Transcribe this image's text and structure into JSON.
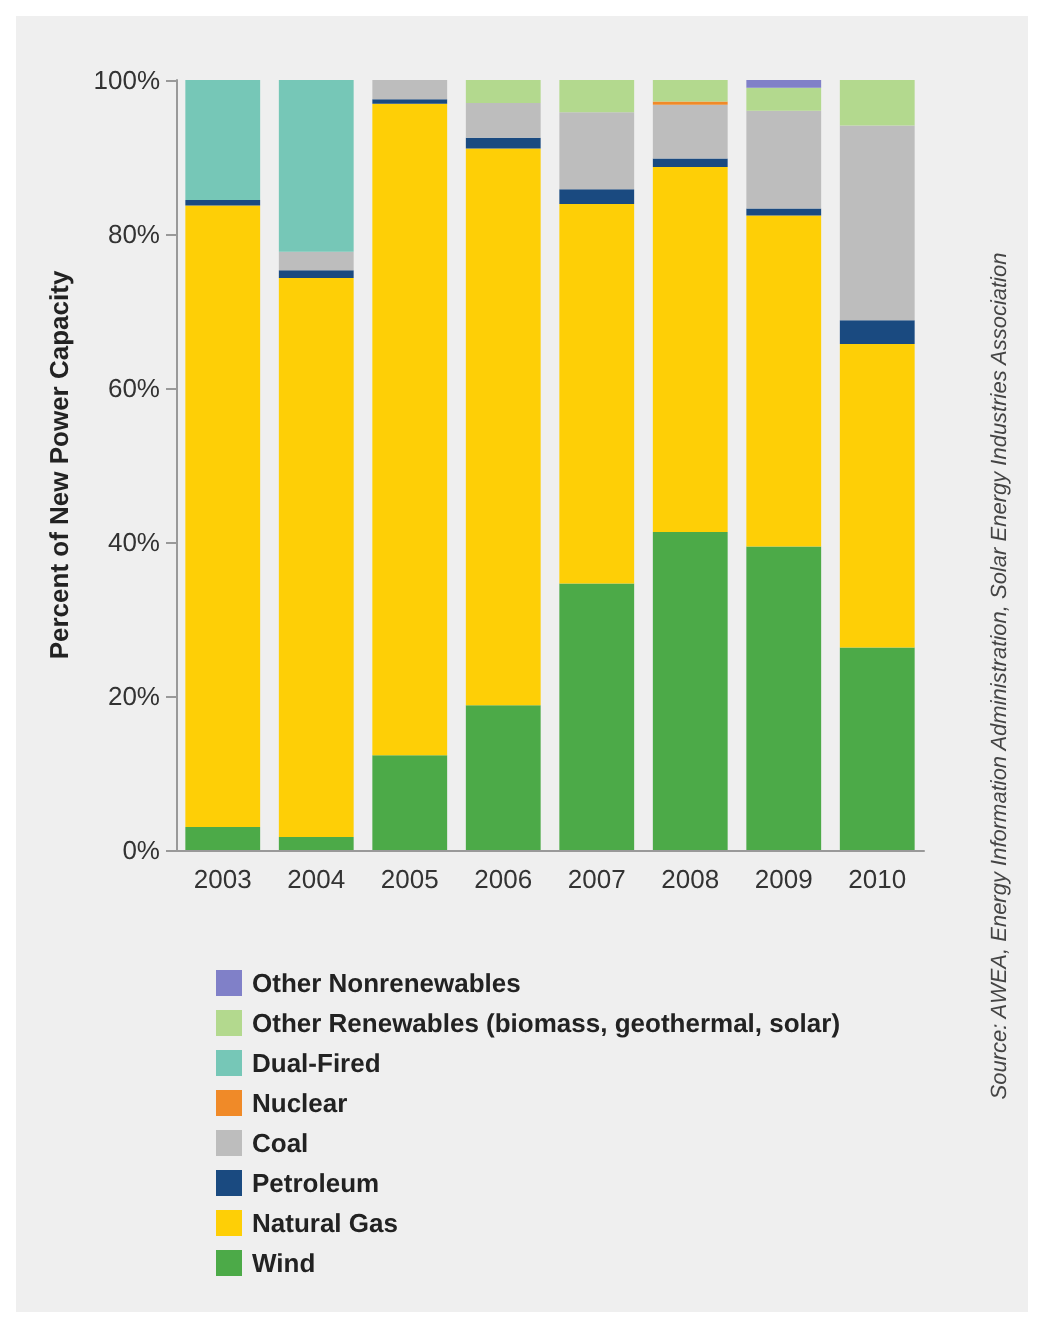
{
  "chart_data": {
    "type": "bar",
    "stacked": true,
    "ylabel": "Percent of New Power Capacity",
    "categories": [
      "2003",
      "2004",
      "2005",
      "2006",
      "2007",
      "2008",
      "2009",
      "2010"
    ],
    "series": [
      {
        "name": "Wind",
        "color": "#4caa48",
        "values": [
          3.0,
          1.7,
          12.3,
          18.8,
          34.6,
          41.3,
          39.4,
          26.3
        ]
      },
      {
        "name": "Natural Gas",
        "color": "#fecf06",
        "values": [
          80.7,
          72.6,
          84.6,
          72.3,
          49.3,
          47.4,
          43.0,
          39.4
        ]
      },
      {
        "name": "Petroleum",
        "color": "#1a4a80",
        "values": [
          0.7,
          1.0,
          0.6,
          1.4,
          1.9,
          1.1,
          0.9,
          3.1
        ]
      },
      {
        "name": "Coal",
        "color": "#bdbdbd",
        "values": [
          null,
          2.4,
          2.5,
          4.5,
          10.0,
          7.0,
          12.7,
          25.3
        ]
      },
      {
        "name": "Nuclear",
        "color": "#f08a28",
        "values": [
          null,
          null,
          null,
          null,
          null,
          0.4,
          null,
          null
        ]
      },
      {
        "name": "Dual-Fired",
        "color": "#76c7b7",
        "values": [
          15.6,
          22.3,
          null,
          null,
          null,
          null,
          null,
          null
        ]
      },
      {
        "name": "Other Renewables (biomass, geothermal, solar)",
        "color": "#b3d98e",
        "values": [
          null,
          null,
          null,
          3.0,
          4.2,
          2.8,
          3.0,
          5.9
        ]
      },
      {
        "name": "Other Nonrenewables",
        "color": "#8080c8",
        "values": [
          null,
          null,
          null,
          null,
          null,
          null,
          1.0,
          null
        ]
      }
    ],
    "ylim": [
      0,
      100
    ],
    "yticks": [
      {
        "value": 0,
        "label": "0%"
      },
      {
        "value": 20,
        "label": "20%"
      },
      {
        "value": 40,
        "label": "40%"
      },
      {
        "value": 60,
        "label": "60%"
      },
      {
        "value": 80,
        "label": "80%"
      },
      {
        "value": 100,
        "label": "100%"
      }
    ],
    "grid": false,
    "legend": "bottom",
    "annotations": [
      "Source: AWEA, Energy Information Administration, Solar Energy Industries Association"
    ]
  }
}
